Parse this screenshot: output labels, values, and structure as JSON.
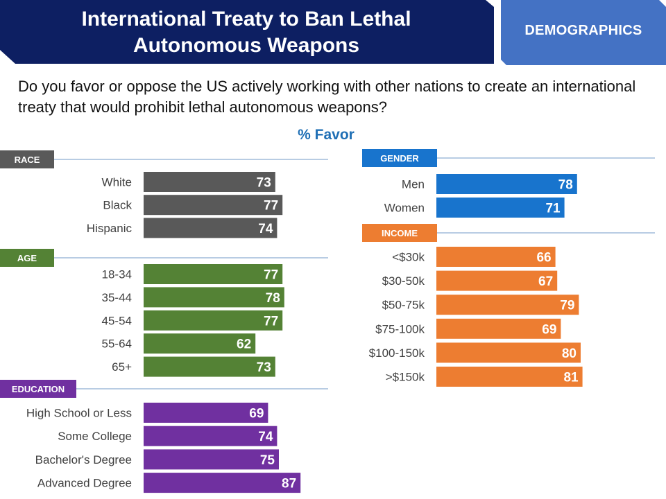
{
  "header": {
    "title_line1": "International Treaty to Ban Lethal",
    "title_line2": "Autonomous Weapons",
    "tab_label": "DEMOGRAPHICS"
  },
  "question": "Do you favor or oppose the US actively working with other nations to create an international treaty that would prohibit lethal autonomous weapons?",
  "subtitle": "% Favor",
  "colors": {
    "header_navy": "#0d1f62",
    "tab_blue": "#4472c4",
    "race": "#595959",
    "age": "#548235",
    "education": "#7030a0",
    "gender": "#1874cd",
    "income": "#ed7d31",
    "rule": "#8eaed2"
  },
  "chart_data": [
    {
      "type": "bar",
      "group": "RACE",
      "color_key": "race",
      "categories": [
        "White",
        "Black",
        "Hispanic"
      ],
      "values": [
        73,
        77,
        74
      ]
    },
    {
      "type": "bar",
      "group": "AGE",
      "color_key": "age",
      "categories": [
        "18-34",
        "35-44",
        "45-54",
        "55-64",
        "65+"
      ],
      "values": [
        77,
        78,
        77,
        62,
        73
      ]
    },
    {
      "type": "bar",
      "group": "EDUCATION",
      "color_key": "education",
      "categories": [
        "High School or Less",
        "Some College",
        "Bachelor's Degree",
        "Advanced Degree"
      ],
      "values": [
        69,
        74,
        75,
        87
      ]
    },
    {
      "type": "bar",
      "group": "GENDER",
      "color_key": "gender",
      "categories": [
        "Men",
        "Women"
      ],
      "values": [
        78,
        71
      ]
    },
    {
      "type": "bar",
      "group": "INCOME",
      "color_key": "income",
      "categories": [
        "<$30k",
        "$30-50k",
        "$50-75k",
        "$75-100k",
        "$100-150k",
        ">$150k"
      ],
      "values": [
        66,
        67,
        79,
        69,
        80,
        81
      ]
    }
  ]
}
